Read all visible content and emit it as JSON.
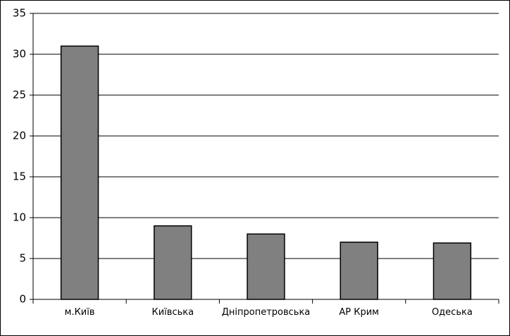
{
  "chart_data": {
    "type": "bar",
    "categories": [
      "м.Київ",
      "Київська",
      "Дніпропетровська",
      "АР Крим",
      "Одеська"
    ],
    "values": [
      31,
      9,
      8,
      7,
      6.9
    ],
    "color": "#808080",
    "ylim": [
      0,
      35
    ],
    "yticks": [
      0,
      5,
      10,
      15,
      20,
      25,
      30,
      35
    ],
    "grid": true
  }
}
